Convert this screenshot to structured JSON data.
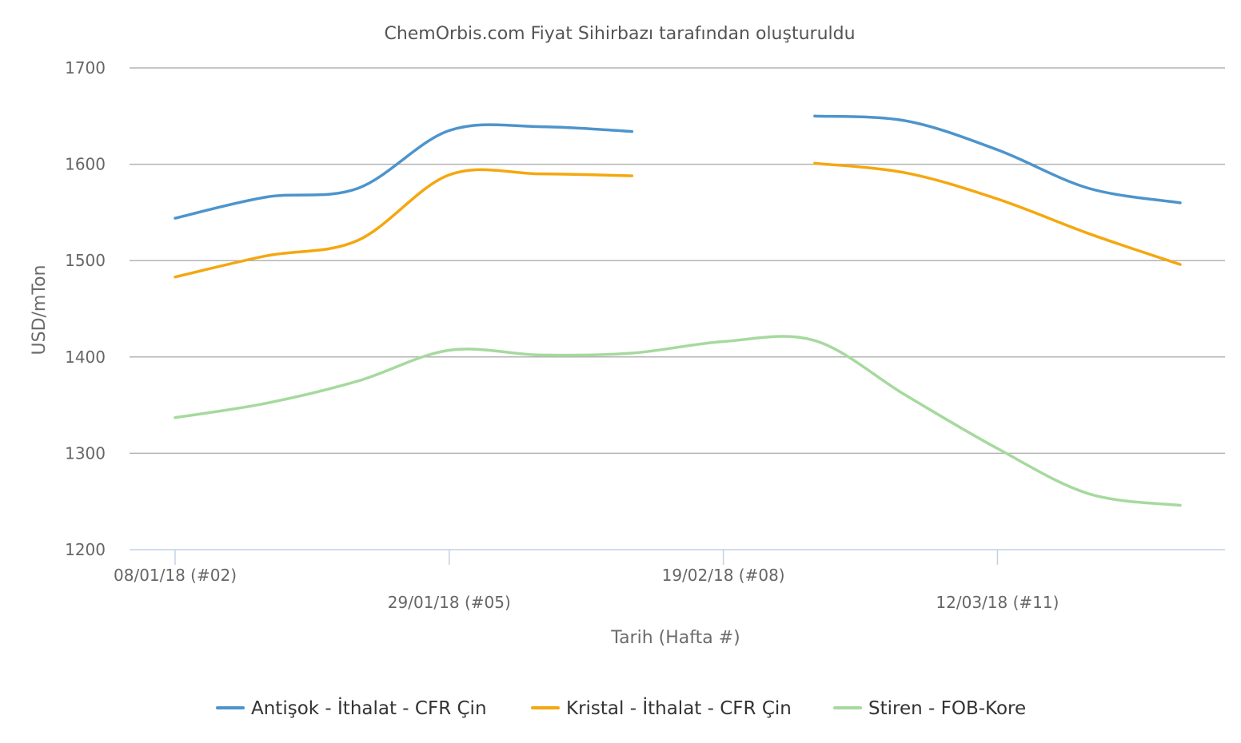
{
  "chart_data": {
    "type": "line",
    "title": "ChemOrbis.com Fiyat Sihirbazı tarafından oluşturuldu",
    "xlabel": "Tarih (Hafta #)",
    "ylabel": "USD/mTon",
    "ylim": [
      1200,
      1700
    ],
    "yticks": [
      1200,
      1300,
      1400,
      1500,
      1600,
      1700
    ],
    "grid": true,
    "legend_position": "bottom",
    "x": [
      2,
      3,
      4,
      5,
      6,
      7,
      8,
      9,
      10,
      11,
      12,
      13
    ],
    "xticks": [
      {
        "week": 2,
        "label": "08/01/18 (#02)"
      },
      {
        "week": 5,
        "label": "29/01/18 (#05)"
      },
      {
        "week": 8,
        "label": "19/02/18 (#08)"
      },
      {
        "week": 11,
        "label": "12/03/18 (#11)"
      }
    ],
    "series": [
      {
        "name": "Antişok - İthalat - CFR Çin",
        "color": "#4d94cc",
        "values": [
          1544,
          1566,
          1575,
          1635,
          1639,
          1634,
          null,
          1650,
          1645,
          1615,
          1575,
          1560
        ]
      },
      {
        "name": "Kristal - İthalat - CFR Çin",
        "color": "#f5a70f",
        "values": [
          1483,
          1505,
          1521,
          1589,
          1590,
          1588,
          null,
          1601,
          1591,
          1564,
          1528,
          1496
        ]
      },
      {
        "name": "Stiren - FOB-Kore",
        "color": "#a6d99e",
        "values": [
          1337,
          1352,
          1375,
          1407,
          1402,
          1404,
          1416,
          1417,
          1360,
          1305,
          1258,
          1246
        ]
      }
    ]
  }
}
